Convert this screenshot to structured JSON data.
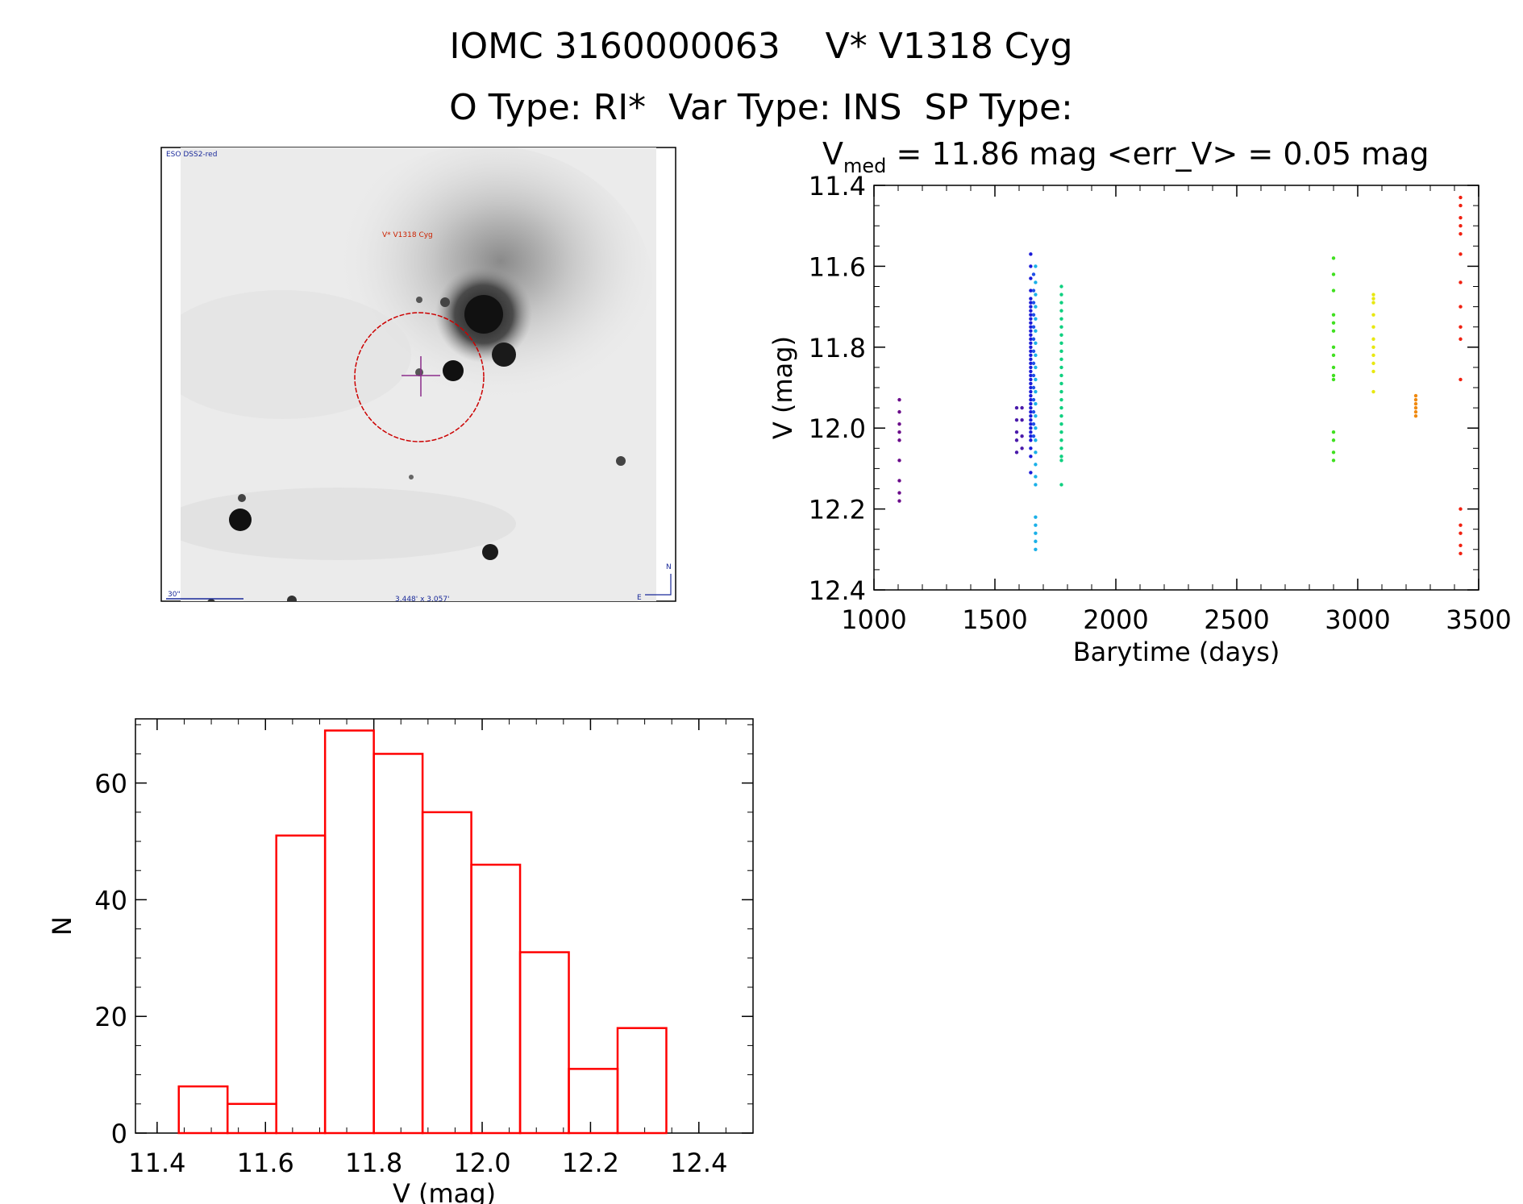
{
  "header": {
    "title": "IOMC 3160000063    V* V1318 Cyg",
    "subtitle": "O Type: RI*  Var Type: INS  SP Type:"
  },
  "image_panel": {
    "survey_label": "ESO DSS2-red",
    "object_label": "V* V1318 Cyg",
    "scale_label": "30\"",
    "fov_label": "3.448' x 3.057'",
    "north_label": "N",
    "east_label": "E"
  },
  "colors": {
    "histogram": "#ff0000",
    "circle": "#cc0000",
    "crosshair": "#8b2c8b",
    "image_label_blue": "#1a2a9a",
    "image_label_red": "#cc2200"
  },
  "chart_data": [
    {
      "type": "scatter",
      "title_main": "V",
      "title_sub": "med",
      "title_rest": " = 11.86 mag <err_V> = 0.05 mag",
      "xlabel": "Barytime (days)",
      "ylabel": "V (mag)",
      "xlim": [
        1000,
        3500
      ],
      "ylim": [
        12.4,
        11.4
      ],
      "y_inverted": true,
      "xticks": [
        "1000",
        "1500",
        "2000",
        "2500",
        "3000",
        "3500"
      ],
      "yticks": [
        "11.4",
        "11.6",
        "11.8",
        "12.0",
        "12.2",
        "12.4"
      ],
      "groups": [
        {
          "x": 1105,
          "color": "#6a0a8a",
          "y": [
            11.93,
            11.96,
            11.99,
            12.01,
            12.03,
            12.08,
            12.13,
            12.16,
            12.18
          ]
        },
        {
          "x": 1590,
          "color": "#4a1aaa",
          "y": [
            11.95,
            11.98,
            12.01,
            12.03,
            12.06
          ]
        },
        {
          "x": 1612,
          "color": "#4a1aaa",
          "y": [
            11.95,
            11.98,
            12.02,
            12.05
          ]
        },
        {
          "x": 1648,
          "color": "#1a1ad8",
          "y": [
            11.57,
            11.6,
            11.63,
            11.66,
            11.68,
            11.69,
            11.7,
            11.71,
            11.72,
            11.73,
            11.74,
            11.75,
            11.76,
            11.77,
            11.78,
            11.79,
            11.8,
            11.81,
            11.82,
            11.83,
            11.84,
            11.85,
            11.86,
            11.87,
            11.88,
            11.89,
            11.9,
            11.91,
            11.92,
            11.93,
            11.94,
            11.95,
            11.96,
            11.97,
            11.98,
            11.99,
            12.0,
            12.01,
            12.02,
            12.03,
            12.05,
            12.07,
            12.11
          ]
        },
        {
          "x": 1660,
          "color": "#2050e8",
          "y": [
            11.62,
            11.66,
            11.69,
            11.72,
            11.75,
            11.78,
            11.81,
            11.84,
            11.87,
            11.9,
            11.93,
            11.96,
            11.99,
            12.02
          ]
        },
        {
          "x": 1668,
          "color": "#1ab0e8",
          "y": [
            11.6,
            11.64,
            11.67,
            11.7,
            11.73,
            11.76,
            11.79,
            11.82,
            11.85,
            11.88,
            11.91,
            11.94,
            11.97,
            12.0,
            12.03,
            12.06,
            12.09,
            12.12,
            12.14,
            12.22,
            12.24,
            12.26,
            12.28,
            12.3
          ]
        },
        {
          "x": 1775,
          "color": "#10d080",
          "y": [
            11.65,
            11.67,
            11.69,
            11.71,
            11.73,
            11.75,
            11.77,
            11.79,
            11.81,
            11.83,
            11.85,
            11.87,
            11.89,
            11.91,
            11.93,
            11.95,
            11.97,
            11.99,
            12.01,
            12.03,
            12.05,
            12.07,
            12.08,
            12.14
          ]
        },
        {
          "x": 2900,
          "color": "#40e020",
          "y": [
            11.58,
            11.62,
            11.66,
            11.72,
            11.74,
            11.76,
            11.8,
            11.82,
            11.85,
            11.87,
            11.88,
            12.01,
            12.03,
            12.06,
            12.08
          ]
        },
        {
          "x": 3065,
          "color": "#e8e810",
          "y": [
            11.67,
            11.68,
            11.69,
            11.72,
            11.75,
            11.78,
            11.8,
            11.82,
            11.84,
            11.86,
            11.91
          ]
        },
        {
          "x": 3240,
          "color": "#f08a10",
          "y": [
            11.92,
            11.93,
            11.94,
            11.95,
            11.96,
            11.97
          ]
        },
        {
          "x": 3425,
          "color": "#f02010",
          "y": [
            11.43,
            11.45,
            11.48,
            11.5,
            11.52,
            11.57,
            11.64,
            11.7,
            11.75,
            11.78,
            11.88,
            12.2,
            12.24,
            12.26,
            12.29,
            12.31
          ]
        }
      ]
    },
    {
      "type": "bar",
      "subtype": "histogram",
      "xlabel": "V (mag)",
      "ylabel": "N",
      "xlim": [
        11.36,
        12.5
      ],
      "ylim": [
        0,
        71
      ],
      "xticks": [
        "11.4",
        "11.6",
        "11.8",
        "12.0",
        "12.2",
        "12.4"
      ],
      "yticks": [
        "0",
        "20",
        "40",
        "60"
      ],
      "bins": [
        {
          "x0": 11.44,
          "x1": 11.53,
          "count": 8
        },
        {
          "x0": 11.53,
          "x1": 11.62,
          "count": 5
        },
        {
          "x0": 11.62,
          "x1": 11.71,
          "count": 51
        },
        {
          "x0": 11.71,
          "x1": 11.8,
          "count": 69
        },
        {
          "x0": 11.8,
          "x1": 11.89,
          "count": 65
        },
        {
          "x0": 11.89,
          "x1": 11.98,
          "count": 55
        },
        {
          "x0": 11.98,
          "x1": 12.07,
          "count": 46
        },
        {
          "x0": 12.07,
          "x1": 12.16,
          "count": 31
        },
        {
          "x0": 12.16,
          "x1": 12.25,
          "count": 11
        },
        {
          "x0": 12.25,
          "x1": 12.34,
          "count": 18
        }
      ]
    }
  ]
}
